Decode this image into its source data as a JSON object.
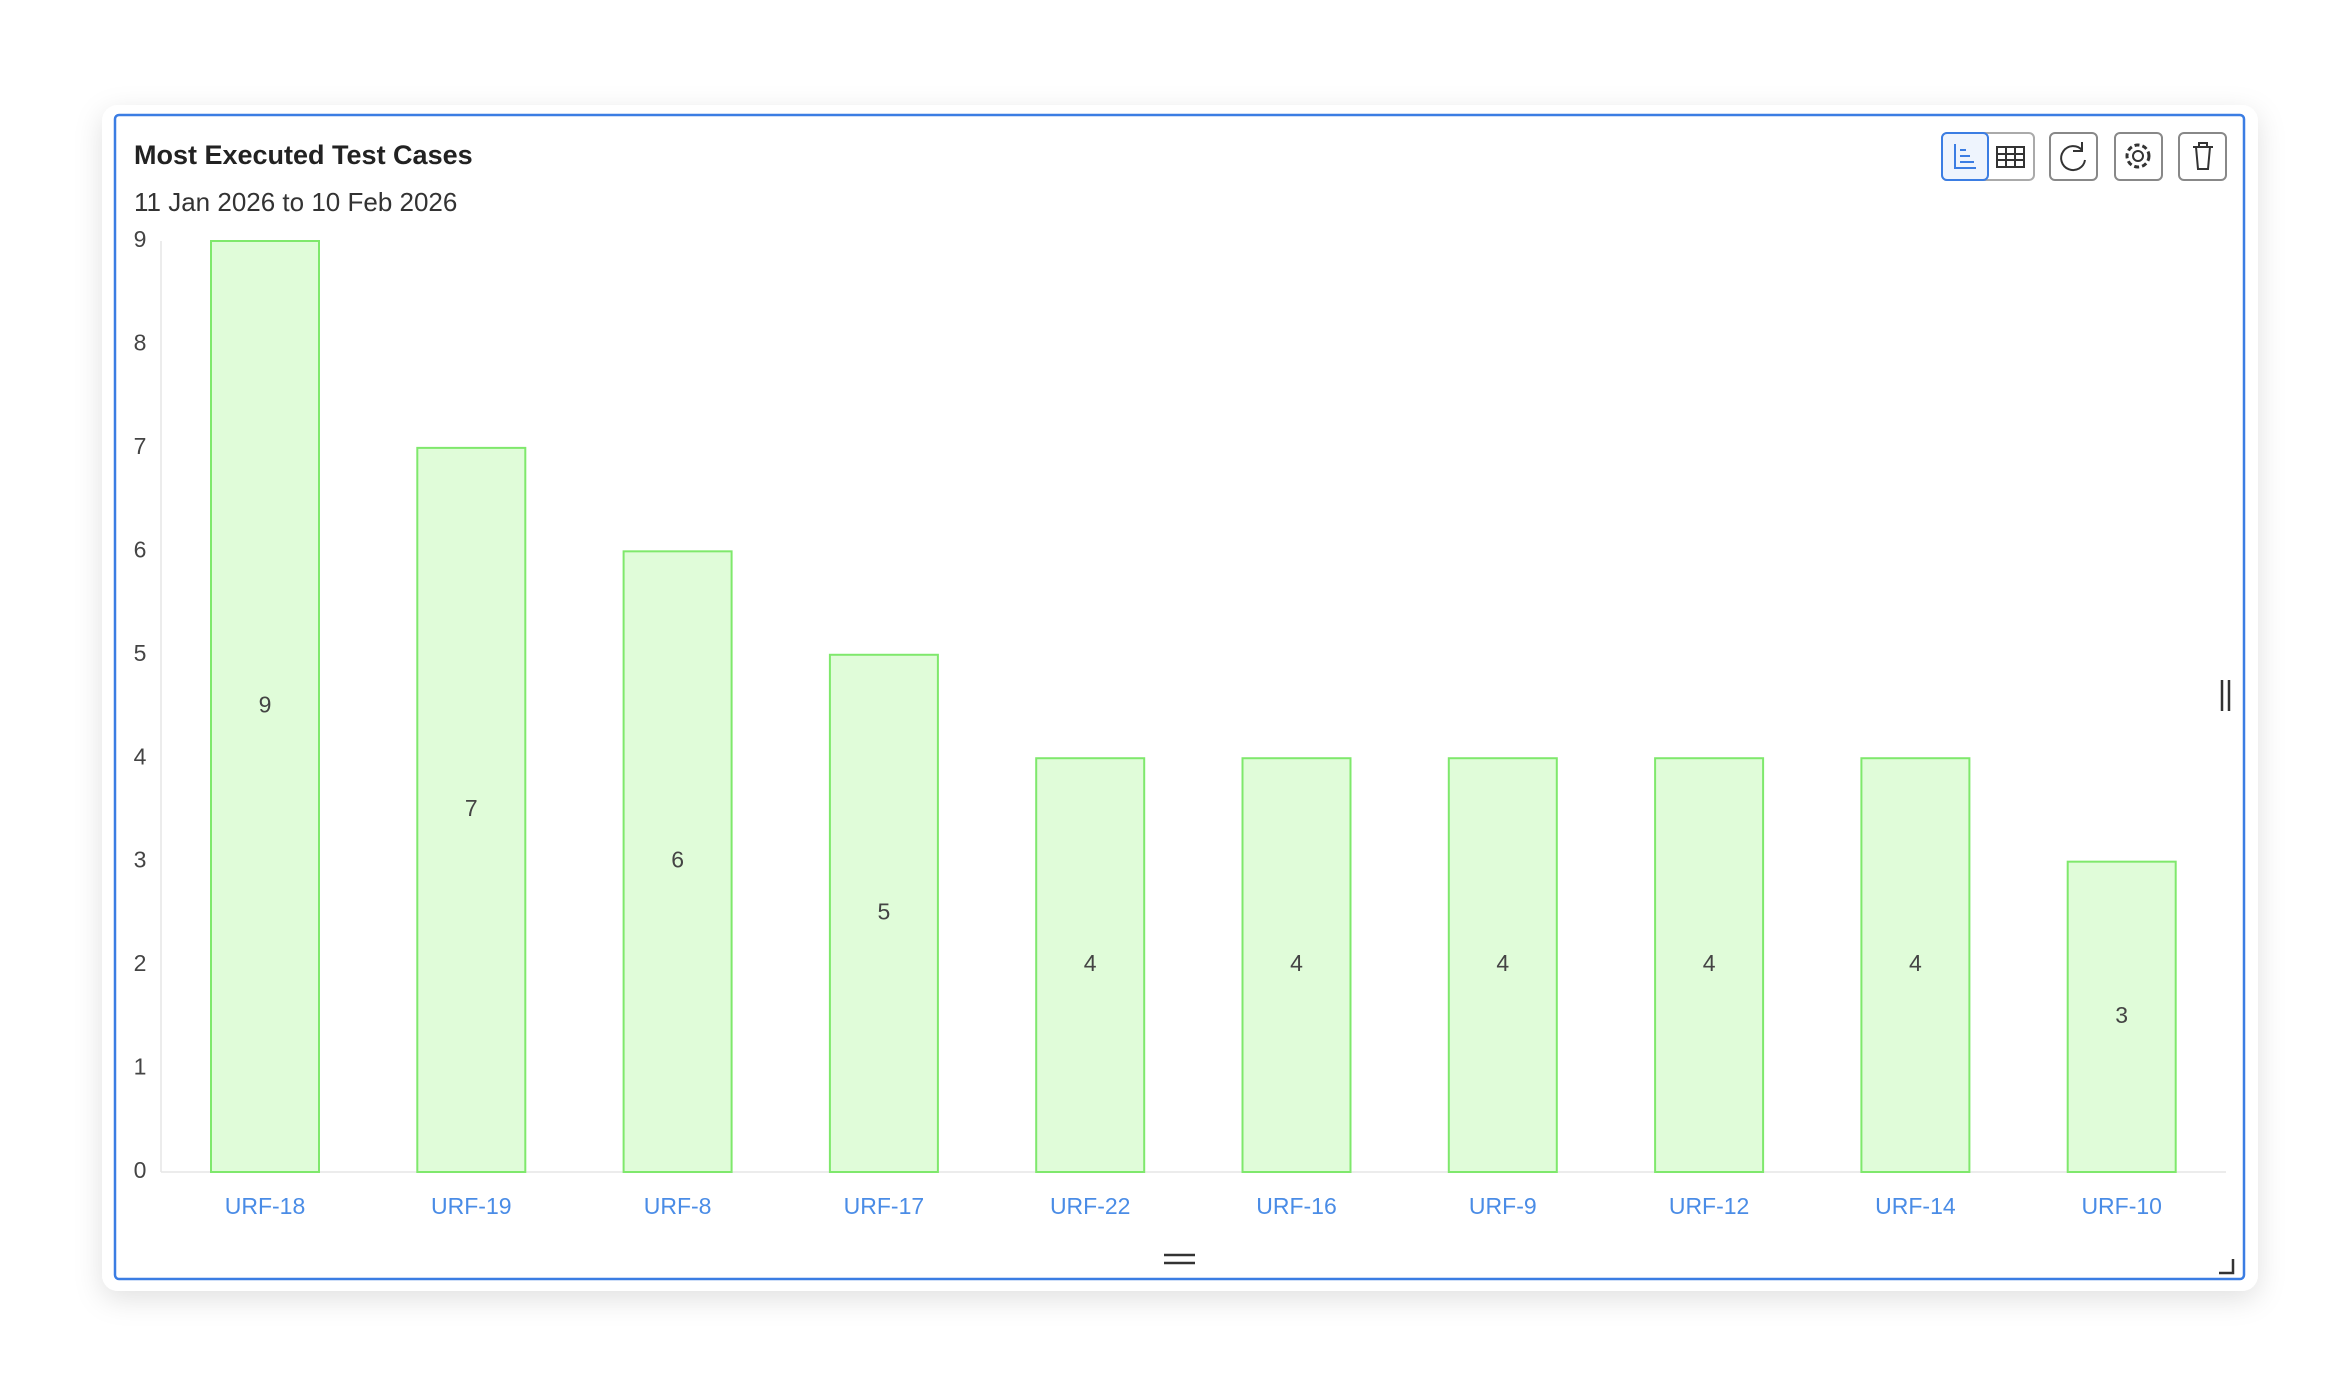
{
  "chart_data": {
    "type": "bar",
    "title": "Most Executed Test Cases",
    "subtitle": "11 Jan 2026 to 10 Feb 2026",
    "categories": [
      "URF-18",
      "URF-19",
      "URF-8",
      "URF-17",
      "URF-22",
      "URF-16",
      "URF-9",
      "URF-12",
      "URF-14",
      "URF-10"
    ],
    "values": [
      9,
      7,
      6,
      5,
      4,
      4,
      4,
      4,
      4,
      3
    ],
    "color": "#e0fcd9",
    "edge_color": "#7fe86c",
    "ylim": [
      0,
      9
    ],
    "yticks": [
      0,
      1,
      2,
      3,
      4,
      5,
      6,
      7,
      8,
      9
    ],
    "grid": false
  }
}
